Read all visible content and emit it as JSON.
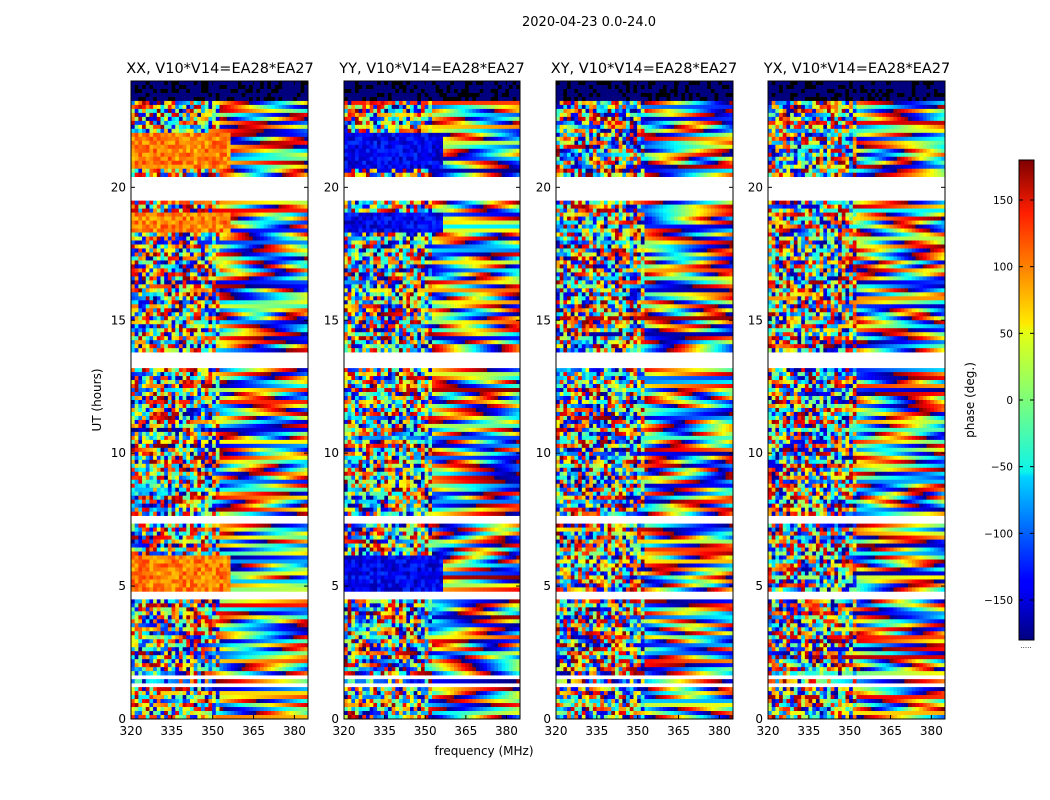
{
  "figure": {
    "suptitle": "2020-04-23 0.0-24.0",
    "xlabel": "frequency (MHz)",
    "ylabel": "UT (hours)",
    "footer": "....."
  },
  "chart_data": {
    "type": "heatmap",
    "title": "2020-04-23 0.0-24.0",
    "xlabel": "frequency (MHz)",
    "ylabel": "UT (hours)",
    "xlim": [
      320,
      385
    ],
    "ylim": [
      0,
      24
    ],
    "x_ticks": [
      320,
      335,
      350,
      365,
      380
    ],
    "y_ticks": [
      0,
      5,
      10,
      15,
      20
    ],
    "colorscale": "jet",
    "panels": [
      {
        "title": "XX, V10*V14=EA28*EA27",
        "pol": "XX"
      },
      {
        "title": "YY, V10*V14=EA28*EA27",
        "pol": "YY"
      },
      {
        "title": "XY, V10*V14=EA28*EA27",
        "pol": "XY"
      },
      {
        "title": "YX, V10*V14=EA28*EA27",
        "pol": "YX"
      }
    ],
    "colorbar": {
      "label": "phase (deg.)",
      "range": [
        -180,
        180
      ],
      "ticks": [
        -150,
        -100,
        -50,
        0,
        50,
        100,
        150
      ],
      "tick_labels": [
        "−150",
        "−100",
        "−50",
        "0",
        "50",
        "100",
        "150"
      ]
    },
    "flagged_bands_ut": [
      [
        1.15,
        1.3
      ],
      [
        1.55,
        1.7
      ],
      [
        4.5,
        4.8
      ],
      [
        7.4,
        7.6
      ],
      [
        13.2,
        13.8
      ],
      [
        19.5,
        20.4
      ]
    ],
    "coherent_band": {
      "freq_range": [
        320,
        357
      ],
      "ut_ranges": [
        [
          4.8,
          6.1
        ],
        [
          18.3,
          19.0
        ],
        [
          20.7,
          22.1
        ]
      ]
    }
  }
}
